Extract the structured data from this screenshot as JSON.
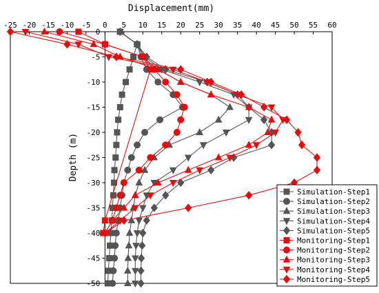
{
  "colors": {
    "simulation": "#555555",
    "monitoring": "#e01010",
    "axis": "#000000",
    "legend_border": "#000000"
  },
  "chart_data": {
    "type": "line",
    "title": "",
    "xlabel": "Displacement(mm)",
    "ylabel": "Depth (m)",
    "xlim": [
      -25,
      60
    ],
    "ylim": [
      -50,
      0
    ],
    "x_ticks": [
      -25,
      -20,
      -15,
      -10,
      -5,
      0,
      5,
      10,
      15,
      20,
      25,
      30,
      35,
      40,
      45,
      50,
      55,
      60
    ],
    "y_ticks": [
      0,
      -5,
      -10,
      -15,
      -20,
      -25,
      -30,
      -35,
      -40,
      -45,
      -50
    ],
    "x_axis_position": "top",
    "grid": false,
    "legend_position": "bottom-right",
    "series": [
      {
        "name": "Simulation-Step1",
        "group": "simulation",
        "marker": "square",
        "points": [
          [
            4,
            0
          ],
          [
            8.5,
            -2.5
          ],
          [
            7.5,
            -5
          ],
          [
            6.5,
            -7.5
          ],
          [
            5.5,
            -10
          ],
          [
            4.5,
            -12.5
          ],
          [
            4,
            -15
          ],
          [
            3.5,
            -17.5
          ],
          [
            3.2,
            -20
          ],
          [
            3,
            -22.5
          ],
          [
            2.8,
            -25
          ],
          [
            2.5,
            -27.5
          ],
          [
            2.4,
            -30
          ],
          [
            2.2,
            -32.5
          ],
          [
            2,
            -35
          ],
          [
            1.8,
            -37.5
          ],
          [
            1.6,
            -40
          ],
          [
            1.3,
            -42.5
          ],
          [
            1.1,
            -45
          ],
          [
            0.9,
            -47.5
          ],
          [
            0.7,
            -50
          ]
        ]
      },
      {
        "name": "Simulation-Step2",
        "group": "simulation",
        "marker": "circle",
        "points": [
          [
            4,
            0
          ],
          [
            8.5,
            -2.5
          ],
          [
            9.5,
            -5
          ],
          [
            11,
            -7.5
          ],
          [
            14,
            -10
          ],
          [
            18,
            -12.5
          ],
          [
            20.5,
            -15
          ],
          [
            14.5,
            -17.5
          ],
          [
            10.5,
            -20
          ],
          [
            8.5,
            -22.5
          ],
          [
            7,
            -25
          ],
          [
            6,
            -27.5
          ],
          [
            5,
            -30
          ],
          [
            4.5,
            -32.5
          ],
          [
            4,
            -35
          ],
          [
            3.5,
            -37.5
          ],
          [
            3,
            -40
          ],
          [
            2.7,
            -42.5
          ],
          [
            2.5,
            -45
          ],
          [
            2.2,
            -47.5
          ],
          [
            2,
            -50
          ]
        ]
      },
      {
        "name": "Simulation-Step3",
        "group": "simulation",
        "marker": "triangle",
        "points": [
          [
            4,
            0
          ],
          [
            8.5,
            -2.5
          ],
          [
            10,
            -5
          ],
          [
            14,
            -7.5
          ],
          [
            20,
            -10
          ],
          [
            28,
            -12.5
          ],
          [
            33,
            -15
          ],
          [
            30,
            -17.5
          ],
          [
            25,
            -20
          ],
          [
            17,
            -22.5
          ],
          [
            13,
            -25
          ],
          [
            10.5,
            -27.5
          ],
          [
            9,
            -30
          ],
          [
            8,
            -32.5
          ],
          [
            7.5,
            -35
          ],
          [
            7,
            -37.5
          ],
          [
            6.5,
            -40
          ],
          [
            6.3,
            -42.5
          ],
          [
            6.1,
            -45
          ],
          [
            6,
            -47.5
          ],
          [
            6,
            -50
          ]
        ]
      },
      {
        "name": "Simulation-Step4",
        "group": "simulation",
        "marker": "triangle-down",
        "points": [
          [
            4,
            0
          ],
          [
            8.5,
            -2.5
          ],
          [
            10.5,
            -5
          ],
          [
            15,
            -7.5
          ],
          [
            25,
            -10
          ],
          [
            34,
            -12.5
          ],
          [
            38,
            -15
          ],
          [
            38,
            -17.5
          ],
          [
            32,
            -20
          ],
          [
            26,
            -22.5
          ],
          [
            22,
            -25
          ],
          [
            18,
            -27.5
          ],
          [
            13,
            -30
          ],
          [
            11,
            -32.5
          ],
          [
            10,
            -35
          ],
          [
            9,
            -37.5
          ],
          [
            8.5,
            -40
          ],
          [
            8.2,
            -42.5
          ],
          [
            8,
            -45
          ],
          [
            8,
            -47.5
          ],
          [
            8,
            -50
          ]
        ]
      },
      {
        "name": "Simulation-Step5",
        "group": "simulation",
        "marker": "diamond",
        "points": [
          [
            4,
            0
          ],
          [
            8.5,
            -2.5
          ],
          [
            11,
            -5
          ],
          [
            16,
            -7.5
          ],
          [
            27,
            -10
          ],
          [
            35,
            -12.5
          ],
          [
            38,
            -15
          ],
          [
            42,
            -17.5
          ],
          [
            44,
            -20
          ],
          [
            44,
            -22.5
          ],
          [
            34,
            -25
          ],
          [
            28,
            -27.5
          ],
          [
            20,
            -30
          ],
          [
            16,
            -32.5
          ],
          [
            13,
            -35
          ],
          [
            11,
            -37.5
          ],
          [
            10,
            -40
          ],
          [
            9.8,
            -42.5
          ],
          [
            9.6,
            -45
          ],
          [
            9.5,
            -47.5
          ],
          [
            9.5,
            -50
          ]
        ]
      },
      {
        "name": "Monitoring-Step1",
        "group": "monitoring",
        "marker": "square",
        "points": [
          [
            -7,
            0
          ],
          [
            0,
            -2.5
          ],
          [
            10,
            -5
          ],
          [
            12,
            -7.5
          ],
          [
            0,
            -37.5
          ],
          [
            -0.5,
            -40
          ]
        ]
      },
      {
        "name": "Monitoring-Step2",
        "group": "monitoring",
        "marker": "circle",
        "points": [
          [
            -12,
            0
          ],
          [
            0,
            -2.5
          ],
          [
            10,
            -5
          ],
          [
            13,
            -7.5
          ],
          [
            16,
            -10
          ],
          [
            19,
            -12.5
          ],
          [
            21,
            -15
          ],
          [
            20,
            -17.5
          ],
          [
            19,
            -20
          ],
          [
            16,
            -22.5
          ],
          [
            12,
            -25
          ],
          [
            9,
            -27.5
          ],
          [
            5,
            -30
          ],
          [
            4,
            -32.5
          ],
          [
            3,
            -35
          ],
          [
            2,
            -37.5
          ],
          [
            0,
            -40
          ]
        ]
      },
      {
        "name": "Monitoring-Step3",
        "group": "monitoring",
        "marker": "triangle",
        "points": [
          [
            -16,
            0
          ],
          [
            -3,
            -2.5
          ],
          [
            4,
            -5
          ],
          [
            14,
            -7.5
          ],
          [
            20,
            -10
          ],
          [
            28,
            -12.5
          ],
          [
            38,
            -15
          ],
          [
            44,
            -17.5
          ],
          [
            43,
            -20
          ],
          [
            38,
            -22.5
          ],
          [
            30,
            -25
          ],
          [
            22,
            -27.5
          ],
          [
            14,
            -30
          ],
          [
            8,
            -32.5
          ],
          [
            5,
            -35
          ],
          [
            2,
            -37.5
          ],
          [
            0,
            -40
          ]
        ]
      },
      {
        "name": "Monitoring-Step4",
        "group": "monitoring",
        "marker": "triangle-down",
        "points": [
          [
            -21,
            0
          ],
          [
            -7,
            -2.5
          ],
          [
            1,
            -5
          ],
          [
            18,
            -7.5
          ],
          [
            27,
            -10
          ],
          [
            35,
            -12.5
          ],
          [
            44,
            -15
          ],
          [
            47,
            -17.5
          ],
          [
            45,
            -20
          ],
          [
            40,
            -22.5
          ],
          [
            33,
            -25
          ],
          [
            25,
            -27.5
          ],
          [
            18,
            -30
          ],
          [
            12,
            -32.5
          ],
          [
            8,
            -35
          ],
          [
            4,
            -37.5
          ],
          [
            0,
            -40
          ]
        ]
      },
      {
        "name": "Monitoring-Step5",
        "group": "monitoring",
        "marker": "diamond",
        "points": [
          [
            -25,
            0
          ],
          [
            -10,
            -2.5
          ],
          [
            3,
            -5
          ],
          [
            20,
            -7.5
          ],
          [
            28,
            -10
          ],
          [
            36,
            -12.5
          ],
          [
            42,
            -15
          ],
          [
            48,
            -17.5
          ],
          [
            51,
            -20
          ],
          [
            52,
            -22.5
          ],
          [
            56,
            -25
          ],
          [
            56,
            -27.5
          ],
          [
            50,
            -30
          ],
          [
            38,
            -32.5
          ],
          [
            22,
            -35
          ],
          [
            5,
            -37.5
          ],
          [
            0,
            -40
          ]
        ]
      }
    ]
  }
}
